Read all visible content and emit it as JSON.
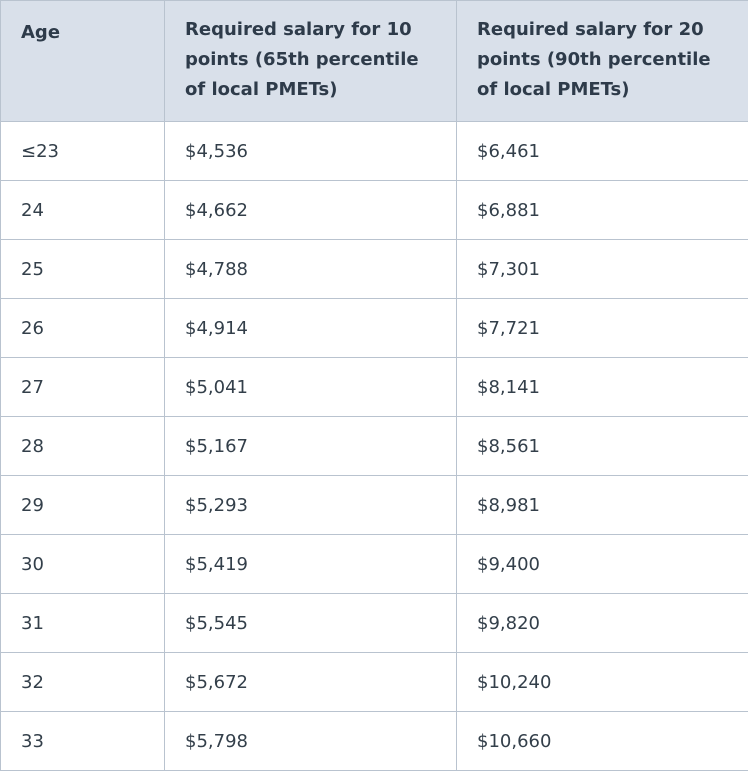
{
  "table": {
    "headers": [
      "Age",
      "Required salary for 10 points (65th percentile of local PMETs)",
      "Required salary for 20 points (90th percentile of local PMETs)"
    ],
    "rows": [
      [
        "≤23",
        "$4,536",
        "$6,461"
      ],
      [
        "24",
        "$4,662",
        "$6,881"
      ],
      [
        "25",
        "$4,788",
        "$7,301"
      ],
      [
        "26",
        "$4,914",
        "$7,721"
      ],
      [
        "27",
        "$5,041",
        "$8,141"
      ],
      [
        "28",
        "$5,167",
        "$8,561"
      ],
      [
        "29",
        "$5,293",
        "$8,981"
      ],
      [
        "30",
        "$5,419",
        "$9,400"
      ],
      [
        "31",
        "$5,545",
        "$9,820"
      ],
      [
        "32",
        "$5,672",
        "$10,240"
      ],
      [
        "33",
        "$5,798",
        "$10,660"
      ]
    ]
  },
  "colors": {
    "header_bg": "#d9e0ea",
    "border": "#b9c3cf",
    "text": "#333f4a"
  }
}
